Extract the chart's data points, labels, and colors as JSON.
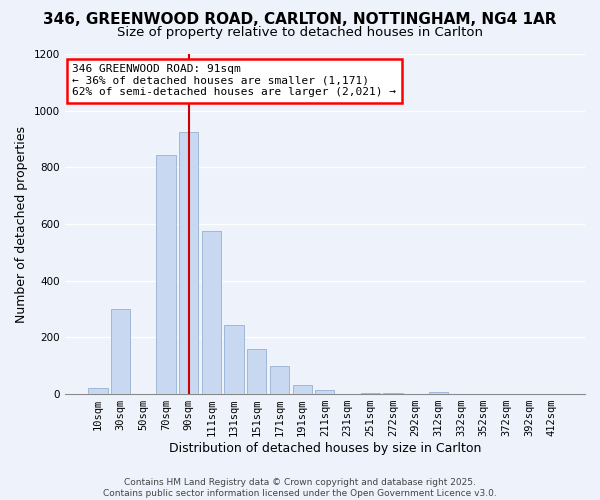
{
  "title": "346, GREENWOOD ROAD, CARLTON, NOTTINGHAM, NG4 1AR",
  "subtitle": "Size of property relative to detached houses in Carlton",
  "xlabel": "Distribution of detached houses by size in Carlton",
  "ylabel": "Number of detached properties",
  "bar_labels": [
    "10sqm",
    "30sqm",
    "50sqm",
    "70sqm",
    "90sqm",
    "111sqm",
    "131sqm",
    "151sqm",
    "171sqm",
    "191sqm",
    "211sqm",
    "231sqm",
    "251sqm",
    "272sqm",
    "292sqm",
    "312sqm",
    "332sqm",
    "352sqm",
    "372sqm",
    "392sqm",
    "412sqm"
  ],
  "bar_values": [
    20,
    300,
    0,
    845,
    925,
    575,
    245,
    160,
    98,
    33,
    14,
    0,
    5,
    5,
    0,
    8,
    0,
    0,
    0,
    0,
    0
  ],
  "bar_color": "#c8d8f0",
  "bar_edge_color": "#a0b8d8",
  "annotation_line1": "346 GREENWOOD ROAD: 91sqm",
  "annotation_line2": "← 36% of detached houses are smaller (1,171)",
  "annotation_line3": "62% of semi-detached houses are larger (2,021) →",
  "annotation_box_color": "white",
  "annotation_box_edge_color": "red",
  "vline_color": "#cc0000",
  "ylim": [
    0,
    1200
  ],
  "yticks": [
    0,
    200,
    400,
    600,
    800,
    1000,
    1200
  ],
  "footer_line1": "Contains HM Land Registry data © Crown copyright and database right 2025.",
  "footer_line2": "Contains public sector information licensed under the Open Government Licence v3.0.",
  "bg_color": "#eef2fb",
  "grid_color": "#ffffff",
  "title_fontsize": 11,
  "subtitle_fontsize": 9.5,
  "axis_label_fontsize": 9,
  "tick_fontsize": 7.5,
  "footer_fontsize": 6.5
}
